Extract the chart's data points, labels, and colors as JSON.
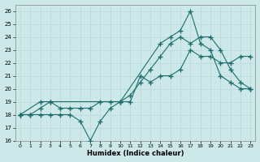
{
  "xlabel": "Humidex (Indice chaleur)",
  "xlim": [
    -0.5,
    23.5
  ],
  "ylim": [
    16,
    26.5
  ],
  "yticks": [
    16,
    17,
    18,
    19,
    20,
    21,
    22,
    23,
    24,
    25,
    26
  ],
  "xticks": [
    0,
    1,
    2,
    3,
    4,
    5,
    6,
    7,
    8,
    9,
    10,
    11,
    12,
    13,
    14,
    15,
    16,
    17,
    18,
    19,
    20,
    21,
    22,
    23
  ],
  "bg_color": "#cce8e8",
  "line_color": "#1e6e6e",
  "grid_color": "#b8d8d8",
  "line1_x": [
    0,
    2,
    3,
    10,
    14,
    15,
    16,
    17,
    18,
    19,
    20,
    21,
    22,
    23
  ],
  "line1_y": [
    18,
    19,
    19,
    19,
    23.5,
    24.0,
    24.5,
    26.0,
    23.5,
    23.0,
    21.0,
    20.5,
    20.0,
    20.0
  ],
  "line2_x": [
    0,
    1,
    2,
    3,
    4,
    5,
    6,
    7,
    8,
    9,
    10,
    11,
    12,
    13,
    14,
    15,
    16,
    17,
    18,
    19,
    20,
    21,
    22,
    23
  ],
  "line2_y": [
    18.0,
    18.0,
    18.5,
    19.0,
    18.5,
    18.5,
    18.5,
    18.5,
    19.0,
    19.0,
    19.0,
    19.5,
    20.5,
    21.5,
    22.5,
    23.5,
    24.0,
    23.5,
    24.0,
    24.0,
    23.0,
    21.5,
    20.5,
    20.0
  ],
  "line3_x": [
    0,
    1,
    2,
    3,
    4,
    5,
    6,
    7,
    8,
    9,
    10,
    11,
    12,
    13,
    14,
    15,
    16,
    17,
    18,
    19,
    20,
    21,
    22,
    23
  ],
  "line3_y": [
    18.0,
    18.0,
    18.0,
    18.0,
    18.0,
    18.0,
    17.5,
    16.0,
    17.5,
    18.5,
    19.0,
    19.0,
    21.0,
    20.5,
    21.0,
    21.0,
    21.5,
    23.0,
    22.5,
    22.5,
    22.0,
    22.0,
    22.5,
    22.5
  ]
}
